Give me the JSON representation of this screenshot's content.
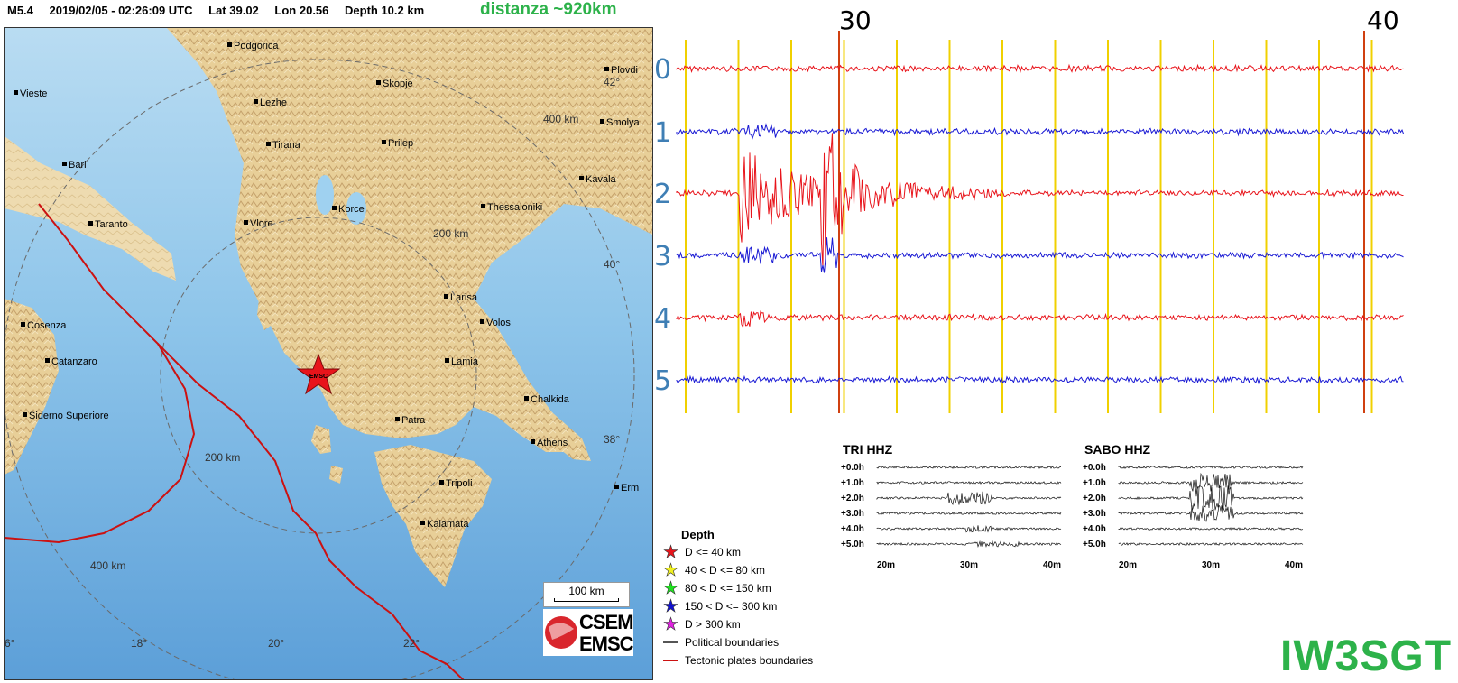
{
  "header": {
    "magnitude": "M5.4",
    "datetime": "2019/02/05 - 02:26:09 UTC",
    "lat": "Lat 39.02",
    "lon": "Lon 20.56",
    "depth": "Depth 10.2 km",
    "distance": "distanza ~920km"
  },
  "map": {
    "cities": [
      {
        "name": "Podgorica"
      },
      {
        "name": "Vieste"
      },
      {
        "name": "Lezhe"
      },
      {
        "name": "Skopje"
      },
      {
        "name": "Plovdi"
      },
      {
        "name": "Smolya"
      },
      {
        "name": "Tirana"
      },
      {
        "name": "Prilep"
      },
      {
        "name": "Bari"
      },
      {
        "name": "Kavala"
      },
      {
        "name": "Taranto"
      },
      {
        "name": "Korce"
      },
      {
        "name": "Thessaloniki"
      },
      {
        "name": "Vlore"
      },
      {
        "name": "Larisa"
      },
      {
        "name": "Cosenza"
      },
      {
        "name": "Volos"
      },
      {
        "name": "Catanzaro"
      },
      {
        "name": "Lamia"
      },
      {
        "name": "Chalkida"
      },
      {
        "name": "Siderno Superiore"
      },
      {
        "name": "Patra"
      },
      {
        "name": "Athens"
      },
      {
        "name": "Tripoli"
      },
      {
        "name": "Erm"
      },
      {
        "name": "Kalamata"
      }
    ],
    "lat_labels": [
      "42°",
      "40°",
      "38°"
    ],
    "lon_labels": [
      "6°",
      "18°",
      "20°",
      "22°"
    ],
    "ring_labels": [
      "200 km",
      "200 km",
      "400 km",
      "400 km"
    ],
    "epicenter_label": "EMSC",
    "scale_bar": "100 km",
    "logo_top": "CSEM",
    "logo_bottom": "EMSC"
  },
  "seismogram": {
    "channel_labels": [
      "0",
      "1",
      "2",
      "3",
      "4",
      "5"
    ],
    "time_markers": [
      "30",
      "40"
    ],
    "trace_colors": [
      "#e8141b",
      "#1a1ad4"
    ],
    "grid_color": "#f0d000",
    "marker_color": "#d04010"
  },
  "helicorders": [
    {
      "title": "TRI HHZ",
      "rows": [
        "+0.0h",
        "+1.0h",
        "+2.0h",
        "+3.0h",
        "+4.0h",
        "+5.0h"
      ],
      "x_ticks": [
        "20m",
        "30m",
        "40m"
      ]
    },
    {
      "title": "SABO HHZ",
      "rows": [
        "+0.0h",
        "+1.0h",
        "+2.0h",
        "+3.0h",
        "+4.0h",
        "+5.0h"
      ],
      "x_ticks": [
        "20m",
        "30m",
        "40m"
      ]
    }
  ],
  "legend": {
    "title": "Depth",
    "items": [
      {
        "label": "D <= 40 km",
        "color": "#e8141b"
      },
      {
        "label": "40 < D <= 80 km",
        "color": "#f0f020"
      },
      {
        "label": "80 < D <= 150 km",
        "color": "#20e020"
      },
      {
        "label": "150 < D <= 300 km",
        "color": "#1010d0"
      },
      {
        "label": "D > 300 km",
        "color": "#e020e0"
      }
    ],
    "lines": [
      {
        "label": "Political boundaries",
        "color": "#555555"
      },
      {
        "label": "Tectonic plates boundaries",
        "color": "#cc1111"
      }
    ]
  },
  "callsign": "IW3SGT"
}
